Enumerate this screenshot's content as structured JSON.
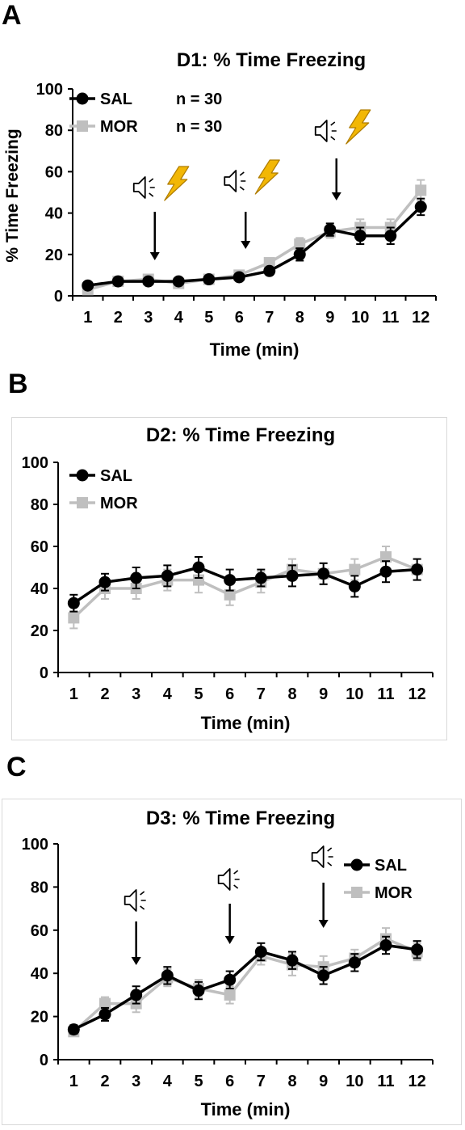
{
  "colors": {
    "sal": "#000000",
    "mor": "#bfbfbf",
    "bolt": "#f2b705",
    "bolt_outline": "#b07d00"
  },
  "panels": [
    {
      "letter": "A"
    },
    {
      "letter": "B"
    },
    {
      "letter": "C"
    }
  ],
  "chart_data": [
    {
      "type": "line",
      "title": "D1: % Time Freezing",
      "xlabel": "Time (min)",
      "ylabel": "% Time Freezing",
      "categories": [
        "1",
        "2",
        "3",
        "4",
        "5",
        "6",
        "7",
        "8",
        "9",
        "10",
        "11",
        "12"
      ],
      "yticks": [
        "0",
        "20",
        "40",
        "60",
        "80",
        "100"
      ],
      "ylim": [
        0,
        100
      ],
      "legend": [
        "SAL",
        "MOR"
      ],
      "legend_n": [
        "n = 30",
        "n = 30"
      ],
      "legend_position": "top-left",
      "series": [
        {
          "name": "SAL",
          "marker": "circle",
          "values": [
            5,
            7,
            7,
            7,
            8,
            9,
            12,
            20,
            32,
            29,
            29,
            43
          ],
          "errors": [
            1,
            1,
            1,
            1,
            1,
            1,
            1,
            3,
            3,
            4,
            4,
            4
          ]
        },
        {
          "name": "MOR",
          "marker": "square",
          "values": [
            3,
            7,
            8,
            6,
            8,
            10,
            16,
            25,
            31,
            33,
            33,
            51
          ],
          "errors": [
            1,
            1,
            1,
            1,
            1,
            1,
            1,
            3,
            3,
            4,
            4,
            5
          ]
        }
      ],
      "cue_times": [
        3,
        6,
        9
      ],
      "cue_icons": [
        "speaker-icon",
        "lightning-icon"
      ]
    },
    {
      "type": "line",
      "title": "D2: % Time Freezing",
      "xlabel": "Time (min)",
      "ylabel": "",
      "categories": [
        "1",
        "2",
        "3",
        "4",
        "5",
        "6",
        "7",
        "8",
        "9",
        "10",
        "11",
        "12"
      ],
      "yticks": [
        "0",
        "20",
        "40",
        "60",
        "80",
        "100"
      ],
      "ylim": [
        0,
        100
      ],
      "legend": [
        "SAL",
        "MOR"
      ],
      "legend_position": "top-left",
      "series": [
        {
          "name": "SAL",
          "marker": "circle",
          "values": [
            33,
            43,
            45,
            46,
            50,
            44,
            45,
            46,
            47,
            41,
            48,
            49
          ],
          "errors": [
            4,
            4,
            5,
            5,
            5,
            5,
            4,
            5,
            5,
            5,
            5,
            5
          ]
        },
        {
          "name": "MOR",
          "marker": "square",
          "values": [
            26,
            40,
            40,
            44,
            44,
            37,
            43,
            49,
            47,
            49,
            55,
            49
          ],
          "errors": [
            5,
            5,
            5,
            5,
            6,
            5,
            5,
            5,
            5,
            5,
            5,
            5
          ]
        }
      ],
      "cue_times": [],
      "cue_icons": []
    },
    {
      "type": "line",
      "title": "D3: % Time Freezing",
      "xlabel": "Time (min)",
      "ylabel": "",
      "categories": [
        "1",
        "2",
        "3",
        "4",
        "5",
        "6",
        "7",
        "8",
        "9",
        "10",
        "11",
        "12"
      ],
      "yticks": [
        "0",
        "20",
        "40",
        "60",
        "80",
        "100"
      ],
      "ylim": [
        0,
        100
      ],
      "legend": [
        "SAL",
        "MOR"
      ],
      "legend_position": "top-right",
      "series": [
        {
          "name": "SAL",
          "marker": "circle",
          "values": [
            14,
            21,
            30,
            39,
            32,
            37,
            50,
            46,
            39,
            45,
            53,
            51
          ],
          "errors": [
            2,
            3,
            4,
            4,
            4,
            4,
            4,
            4,
            4,
            4,
            4,
            4
          ]
        },
        {
          "name": "MOR",
          "marker": "square",
          "values": [
            13,
            26,
            26,
            38,
            33,
            30,
            48,
            44,
            43,
            47,
            56,
            50
          ],
          "errors": [
            2,
            3,
            4,
            4,
            4,
            4,
            4,
            5,
            5,
            4,
            5,
            4
          ]
        }
      ],
      "cue_times": [
        3,
        6,
        9
      ],
      "cue_icons": [
        "speaker-icon"
      ]
    }
  ]
}
